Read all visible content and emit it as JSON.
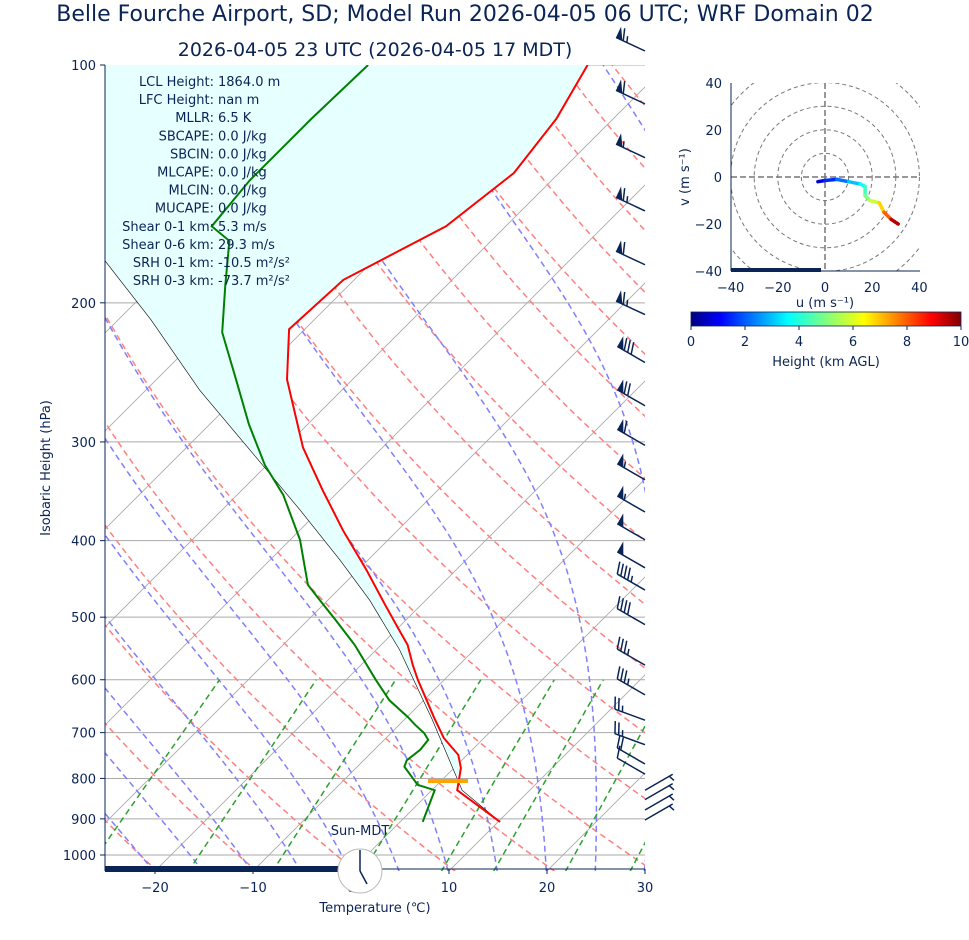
{
  "title": "Belle Fourche Airport, SD; Model Run 2026-04-05 06 UTC; WRF Domain 02",
  "subtitle": "2026-04-05 23 UTC  (2026-04-05 17 MDT)",
  "stats": [
    {
      "label": "LCL Height:",
      "value": "1864.0 m"
    },
    {
      "label": "LFC Height:",
      "value": "nan m"
    },
    {
      "label": "MLLR:",
      "value": "6.5 K"
    },
    {
      "label": "SBCAPE:",
      "value": "0.0 J/kg"
    },
    {
      "label": "SBCIN:",
      "value": "0.0 J/kg"
    },
    {
      "label": "MLCAPE:",
      "value": "0.0 J/kg"
    },
    {
      "label": "MLCIN:",
      "value": "0.0 J/kg"
    },
    {
      "label": "MUCAPE:",
      "value": "0.0 J/kg"
    },
    {
      "label": "Shear 0-1 km:",
      "value": "5.3 m/s"
    },
    {
      "label": "Shear 0-6 km:",
      "value": "29.3 m/s"
    },
    {
      "label": "SRH 0-1 km:",
      "value": "-10.5 m²/s²"
    },
    {
      "label": "SRH 0-3 km:",
      "value": "-73.7 m²/s²"
    }
  ],
  "clock": {
    "label": "Sun-MDT",
    "hour": 17,
    "minute": 0
  },
  "colors": {
    "temperature": "#ff0000",
    "dewpoint": "#008000",
    "parcel": "#000000",
    "cin_fill": "#e6ffff",
    "lcl": "#ffa500",
    "axis": "#0a2455",
    "dry_adiabat": "#ff7f7f",
    "moist_adiabat": "#7f7fff",
    "mixing_ratio": "#2ca02c"
  },
  "chart_data": [
    {
      "type": "line",
      "name_hint": "skew-T",
      "xlabel": "Temperature (℃)",
      "ylabel": "Isobaric Height (hPa)",
      "xlim": [
        -25,
        30
      ],
      "ylim": [
        1050,
        100
      ],
      "yscale": "log",
      "skewed": true,
      "grid": true,
      "xticks": [
        -20,
        -10,
        0,
        10,
        20,
        30
      ],
      "yticks": [
        100,
        200,
        300,
        400,
        500,
        600,
        700,
        800,
        900,
        1000
      ],
      "temperature": {
        "p": [
          908,
          828,
          776,
          747,
          711,
          671,
          637,
          600,
          575,
          542,
          516,
          483,
          436,
          388,
          345,
          305,
          250,
          216,
          187,
          160,
          137,
          117,
          100
        ],
        "t": [
          10.2,
          2.6,
          0.7,
          -0.9,
          -4.1,
          -7.1,
          -9.7,
          -12.7,
          -14.7,
          -17.3,
          -20.0,
          -23.6,
          -29.1,
          -35.6,
          -41.8,
          -48.1,
          -56.7,
          -61.6,
          -61.1,
          -56.1,
          -54.6,
          -55.8,
          -58.1
        ]
      },
      "dewpoint": {
        "p": [
          908,
          828,
          815,
          773,
          759,
          736,
          715,
          701,
          684,
          669,
          637,
          600,
          542,
          504,
          476,
          455,
          399,
          350,
          321,
          285,
          250,
          218,
          190,
          167,
          160,
          140,
          117,
          100
        ],
        "t": [
          2.3,
          0.3,
          -2.0,
          -5.2,
          -5.6,
          -5.3,
          -5.5,
          -6.6,
          -8.4,
          -9.9,
          -13.5,
          -17.0,
          -22.7,
          -27.2,
          -30.8,
          -33.6,
          -39.0,
          -45.3,
          -50.2,
          -56.0,
          -61.9,
          -68.1,
          -72.6,
          -76.7,
          -80.0,
          -80.8,
          -80.8,
          -80.5
        ]
      },
      "parcel": {
        "p": [
          908,
          828,
          672,
          550,
          476,
          423,
          366,
          307,
          258,
          210,
          176
        ],
        "t": [
          10.2,
          3.1,
          -7.3,
          -17.6,
          -25.7,
          -32.9,
          -42.0,
          -53.3,
          -64.5,
          -76.7,
          -87.7
        ]
      },
      "lcl_pressure": 806,
      "wind_barbs": [
        {
          "p": 96,
          "dir": 295,
          "kt": 65
        },
        {
          "p": 112,
          "dir": 295,
          "kt": 60
        },
        {
          "p": 131,
          "dir": 295,
          "kt": 55
        },
        {
          "p": 153,
          "dir": 295,
          "kt": 65
        },
        {
          "p": 179,
          "dir": 295,
          "kt": 60
        },
        {
          "p": 207,
          "dir": 295,
          "kt": 65
        },
        {
          "p": 238,
          "dir": 300,
          "kt": 80
        },
        {
          "p": 270,
          "dir": 300,
          "kt": 70
        },
        {
          "p": 303,
          "dir": 300,
          "kt": 60
        },
        {
          "p": 335,
          "dir": 300,
          "kt": 55
        },
        {
          "p": 368,
          "dir": 300,
          "kt": 55
        },
        {
          "p": 399,
          "dir": 300,
          "kt": 50
        },
        {
          "p": 433,
          "dir": 300,
          "kt": 50
        },
        {
          "p": 462,
          "dir": 300,
          "kt": 45
        },
        {
          "p": 511,
          "dir": 300,
          "kt": 40
        },
        {
          "p": 575,
          "dir": 300,
          "kt": 35
        },
        {
          "p": 627,
          "dir": 300,
          "kt": 35
        },
        {
          "p": 675,
          "dir": 290,
          "kt": 25
        },
        {
          "p": 725,
          "dir": 290,
          "kt": 25
        },
        {
          "p": 767,
          "dir": 300,
          "kt": 20
        },
        {
          "p": 790,
          "dir": 300,
          "kt": 10
        },
        {
          "p": 828,
          "dir": 60,
          "kt": 5
        },
        {
          "p": 851,
          "dir": 60,
          "kt": 5
        },
        {
          "p": 877,
          "dir": 60,
          "kt": 5
        },
        {
          "p": 903,
          "dir": 60,
          "kt": 5
        }
      ]
    },
    {
      "type": "scatter",
      "name_hint": "hodograph",
      "xlabel": "u (m s⁻¹)",
      "ylabel": "v (m s⁻¹)",
      "xlim": [
        -40,
        40
      ],
      "ylim": [
        -40,
        40
      ],
      "xticks": [
        -40,
        -20,
        0,
        20,
        40
      ],
      "yticks": [
        -40,
        -20,
        0,
        20,
        40
      ],
      "rings": [
        10,
        20,
        30,
        40,
        50
      ],
      "u": [
        -3,
        0,
        5,
        10,
        15,
        17,
        17,
        19,
        23,
        25,
        28,
        31
      ],
      "v": [
        -2,
        -1.5,
        -1,
        -2,
        -3,
        -4,
        -8,
        -10,
        -11,
        -15,
        -18,
        -20
      ],
      "height_km": [
        0.2,
        0.8,
        1.5,
        2.2,
        3.0,
        3.6,
        4.3,
        5.0,
        5.8,
        6.8,
        8.0,
        9.5
      ],
      "colorbar": {
        "label": "Height (km AGL)",
        "range": [
          0,
          10
        ],
        "ticks": [
          0,
          2,
          4,
          6,
          8,
          10
        ],
        "colormap": "jet"
      }
    }
  ]
}
